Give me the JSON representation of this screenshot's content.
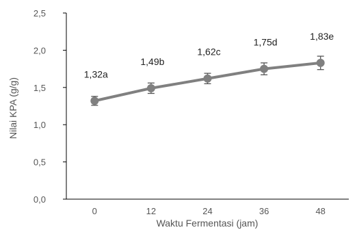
{
  "chart_data": {
    "type": "line",
    "title": "",
    "xlabel": "Waktu Fermentasi (jam)",
    "ylabel": "Nilai KPA (g/g)",
    "categories": [
      "0",
      "12",
      "24",
      "36",
      "48"
    ],
    "series": [
      {
        "values": [
          1.32,
          1.49,
          1.62,
          1.75,
          1.83
        ],
        "error": [
          0.06,
          0.07,
          0.07,
          0.08,
          0.09
        ],
        "labels": [
          "1,32a",
          "1,49b",
          "1,62c",
          "1,75d",
          "1,83e"
        ]
      }
    ],
    "ylim": [
      0,
      2.5
    ],
    "yticks": [
      "0,0",
      "0,5",
      "1,0",
      "1,5",
      "2,0",
      "2,5"
    ],
    "yticks_values": [
      0,
      0.5,
      1.0,
      1.5,
      2.0,
      2.5
    ],
    "grid": false,
    "legend": "none",
    "colors": {
      "line": "#808080",
      "marker": "#808080",
      "axis": "#000000",
      "text": "#555555"
    }
  }
}
